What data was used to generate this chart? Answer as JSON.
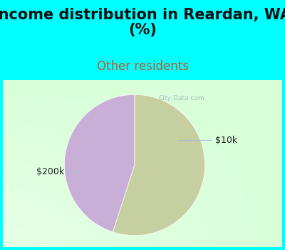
{
  "title": "Income distribution in Reardan, WA\n(%)",
  "subtitle": "Other residents",
  "title_color": "#111111",
  "subtitle_color": "#c05a2a",
  "background_color": "#00FFFF",
  "chart_panel_color": "#f0f8f0",
  "slices": [
    {
      "label": "$10k",
      "value": 45,
      "color": "#c9afd8"
    },
    {
      "label": "$200k",
      "value": 55,
      "color": "#c5cfa0"
    }
  ],
  "watermark": "City-Data.com",
  "label_fontsize": 9,
  "title_fontsize": 15,
  "subtitle_fontsize": 12,
  "startangle": 90
}
